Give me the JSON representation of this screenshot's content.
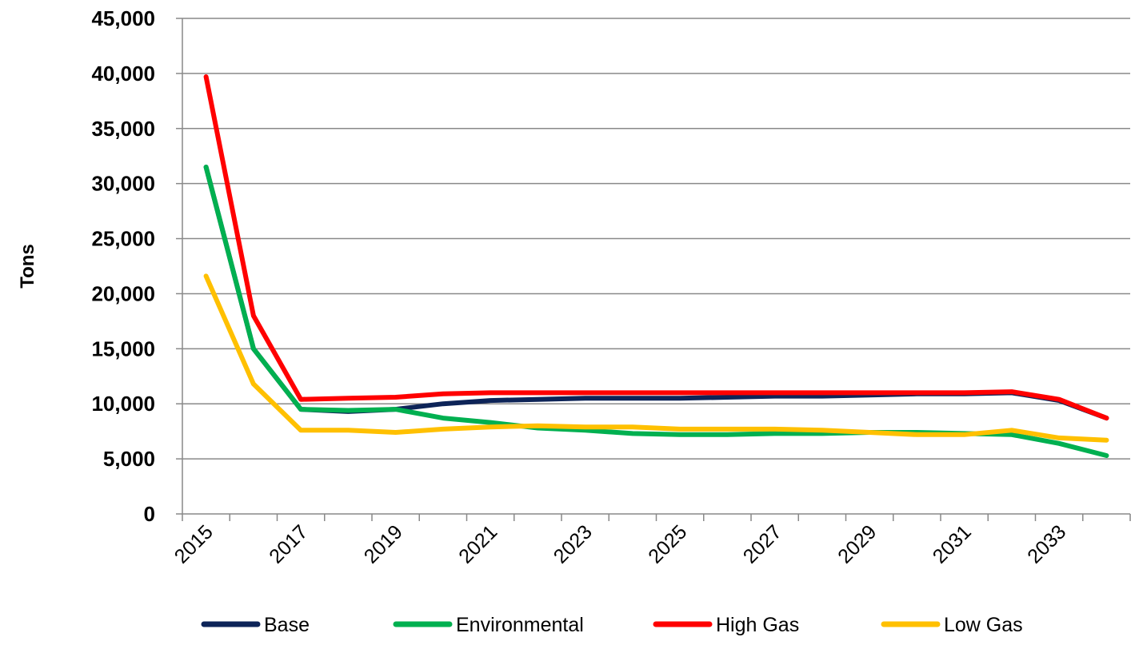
{
  "chart_data": {
    "type": "line",
    "title": "",
    "xlabel": "",
    "ylabel": "Tons",
    "ylim": [
      0,
      45000
    ],
    "yticks": [
      "0",
      "5,000",
      "10,000",
      "15,000",
      "20,000",
      "25,000",
      "30,000",
      "35,000",
      "40,000",
      "45,000"
    ],
    "x": [
      2015,
      2016,
      2017,
      2018,
      2019,
      2020,
      2021,
      2022,
      2023,
      2024,
      2025,
      2026,
      2027,
      2028,
      2029,
      2030,
      2031,
      2032,
      2033,
      2034
    ],
    "xtick_labels": [
      "2015",
      "2017",
      "2019",
      "2021",
      "2023",
      "2025",
      "2027",
      "2029",
      "2031",
      "2033"
    ],
    "grid": true,
    "legend_position": "bottom",
    "series": [
      {
        "name": "Base",
        "color": "#0d2458",
        "values": [
          31500,
          15000,
          9500,
          9300,
          9500,
          10000,
          10300,
          10400,
          10500,
          10500,
          10500,
          10600,
          10700,
          10700,
          10800,
          10900,
          10900,
          11000,
          10300,
          8700
        ]
      },
      {
        "name": "Environmental",
        "color": "#00b050",
        "values": [
          31500,
          15000,
          9500,
          9400,
          9500,
          8700,
          8300,
          7800,
          7600,
          7300,
          7200,
          7200,
          7300,
          7300,
          7400,
          7400,
          7300,
          7200,
          6400,
          5300
        ]
      },
      {
        "name": "High Gas",
        "color": "#ff0000",
        "values": [
          39700,
          18000,
          10400,
          10500,
          10600,
          10900,
          11000,
          11000,
          11000,
          11000,
          11000,
          11000,
          11000,
          11000,
          11000,
          11000,
          11000,
          11100,
          10400,
          8700
        ]
      },
      {
        "name": "Low Gas",
        "color": "#ffc000",
        "values": [
          21600,
          11800,
          7600,
          7600,
          7400,
          7700,
          7900,
          8000,
          7900,
          7900,
          7700,
          7700,
          7700,
          7600,
          7400,
          7200,
          7200,
          7600,
          6900,
          6700
        ]
      }
    ]
  }
}
